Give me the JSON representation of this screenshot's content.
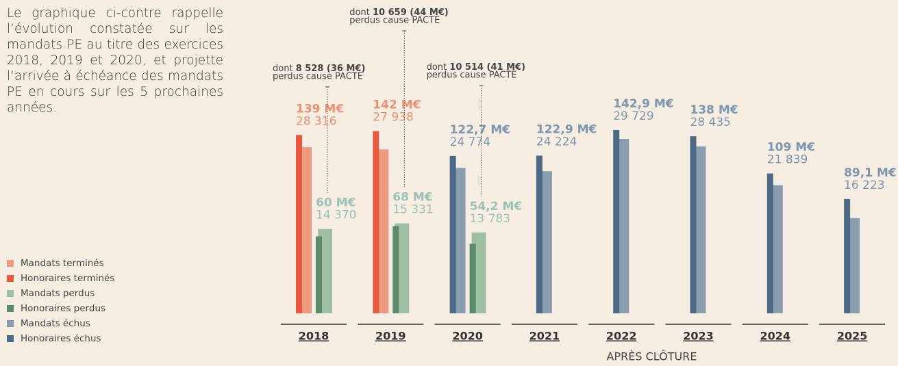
{
  "text": "Le graphique ci-contre rappelle l’évolution constatée sur les mandats PE au titre des exercices 2018, 2019 et 2020, et projette l’arrivée à échéance des mandats PE en cours sur les 5 prochaines années.",
  "chart_data": {
    "type": "bar",
    "categories": [
      "2018",
      "2019",
      "2020",
      "2021",
      "2022",
      "2023",
      "2024",
      "2025"
    ],
    "series": [
      {
        "name": "Mandats terminés",
        "color": "#ee9a80",
        "values": [
          28316,
          27938,
          null,
          null,
          null,
          null,
          null,
          null
        ],
        "value_labels": [
          "28 316",
          "27 938",
          null,
          null,
          null,
          null,
          null,
          null
        ]
      },
      {
        "name": "Honoraires terminés",
        "color": "#e85a3f",
        "values": [
          139,
          142,
          null,
          null,
          null,
          null,
          null,
          null
        ],
        "value_labels": [
          "139 M€",
          "142 M€",
          null,
          null,
          null,
          null,
          null,
          null
        ]
      },
      {
        "name": "Mandats perdus",
        "color": "#9ebfa2",
        "values": [
          14370,
          15331,
          13783,
          null,
          null,
          null,
          null,
          null
        ],
        "value_labels": [
          "14 370",
          "15 331",
          "13 783",
          null,
          null,
          null,
          null,
          null
        ]
      },
      {
        "name": "Honoraires perdus",
        "color": "#5b8a6c",
        "values": [
          60,
          68,
          54.2,
          null,
          null,
          null,
          null,
          null
        ],
        "value_labels": [
          "60 M€",
          "68 M€",
          "54,2 M€",
          null,
          null,
          null,
          null,
          null
        ]
      },
      {
        "name": "Mandats échus",
        "color": "#8b9ead",
        "values": [
          null,
          null,
          24774,
          24224,
          29729,
          28435,
          21839,
          16223
        ],
        "value_labels": [
          null,
          null,
          "24 774",
          "24 224",
          "29 729",
          "28 435",
          "21 839",
          "16 223"
        ]
      },
      {
        "name": "Honoraires échus",
        "color": "#4e6985",
        "values": [
          null,
          null,
          122.7,
          122.9,
          142.9,
          138,
          109,
          89.1
        ],
        "value_labels": [
          null,
          null,
          "122,7 M€",
          "122,9 M€",
          "142,9 M€",
          "138 M€",
          "109 M€",
          "89,1 M€"
        ]
      }
    ],
    "annotations": [
      {
        "prefix": "dont ",
        "bold": "8 528 (36 M€)",
        "text": "perdus cause PACTE"
      },
      {
        "prefix": "dont ",
        "bold": "10 659 (44 M€)",
        "text": "perdus cause PACTE"
      },
      {
        "prefix": "dont ",
        "bold": "10 514 (41 M€)",
        "text": "perdus cause PACTE"
      }
    ],
    "group_label": "APRÈS CLÔTURE"
  }
}
